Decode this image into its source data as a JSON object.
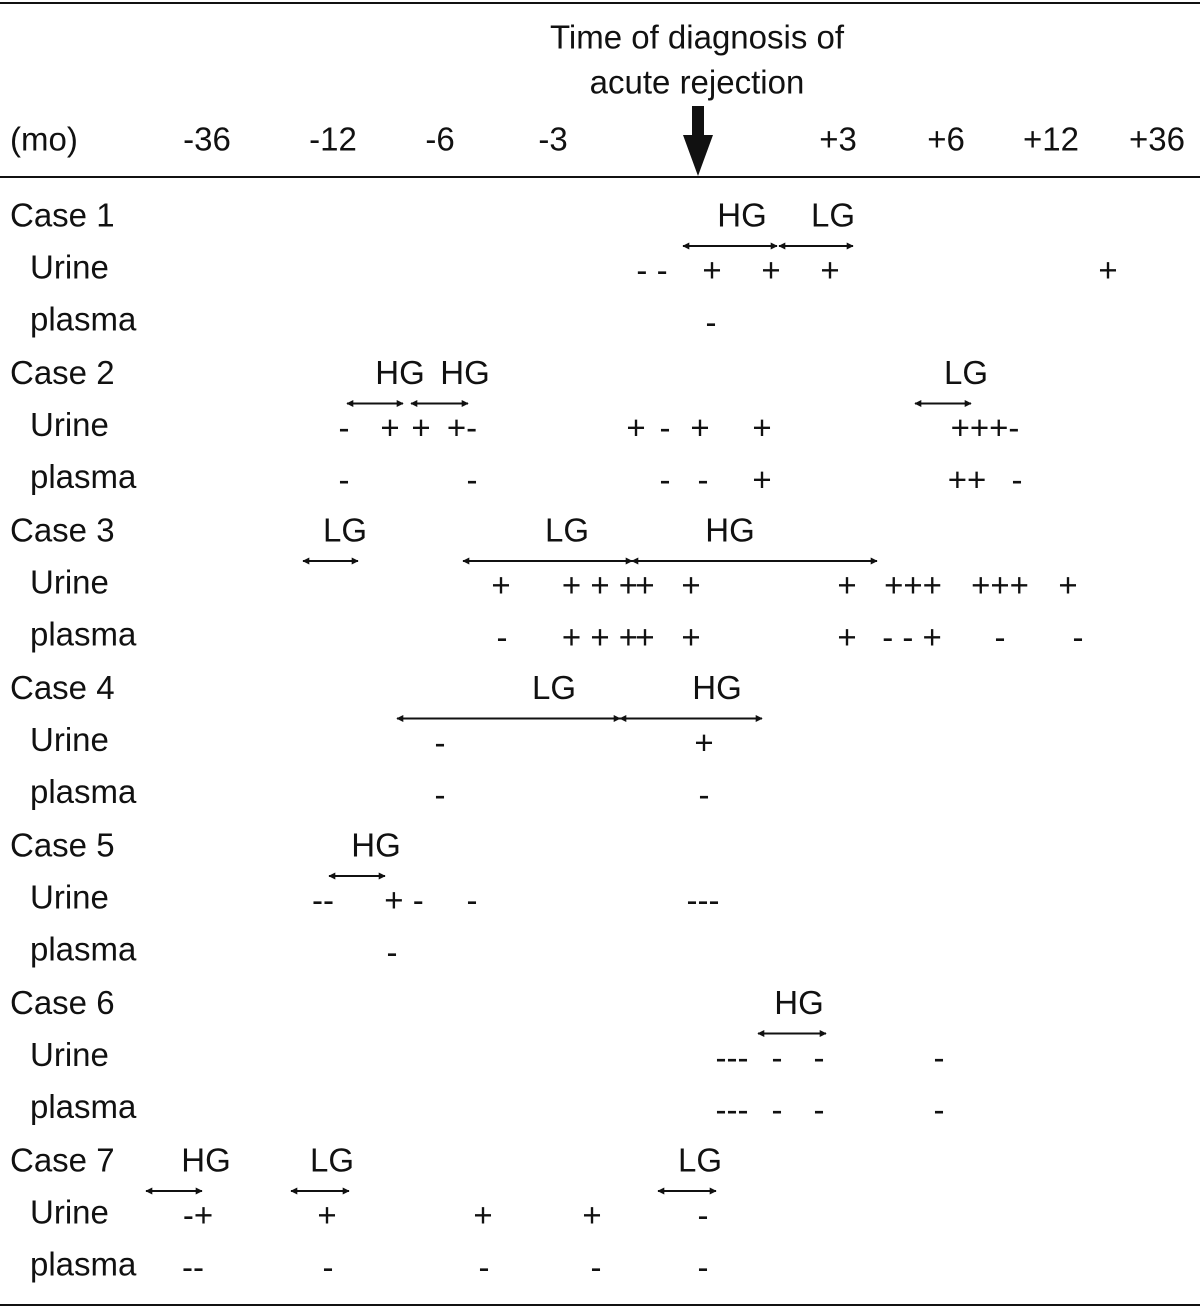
{
  "header": {
    "title_lines": [
      "Time of diagnosis of",
      "acute rejection"
    ],
    "unit": "(mo)",
    "time_points": [
      "-36",
      "-12",
      "-6",
      "-3",
      "+3",
      "+6",
      "+12",
      "+36"
    ]
  },
  "cases": [
    {
      "label": "Case 1",
      "annotations": [
        "HG",
        "LG"
      ],
      "rows": [
        {
          "label": "Urine",
          "marks": [
            "- -",
            "+",
            "+",
            "+",
            "+"
          ]
        },
        {
          "label": "plasma",
          "marks": [
            "-"
          ]
        }
      ]
    },
    {
      "label": "Case 2",
      "annotations": [
        "HG",
        "HG",
        "LG"
      ],
      "rows": [
        {
          "label": "Urine",
          "marks": [
            "-",
            "+",
            "+",
            "+-",
            "+",
            "-",
            "+",
            "+",
            "+++-"
          ]
        },
        {
          "label": "plasma",
          "marks": [
            "-",
            "-",
            "-",
            "-",
            "+",
            "++",
            "-"
          ]
        }
      ]
    },
    {
      "label": "Case 3",
      "annotations": [
        "LG",
        "LG",
        "HG"
      ],
      "rows": [
        {
          "label": "Urine",
          "marks": [
            "+",
            "+ + +",
            "+",
            "+",
            "+",
            "+++",
            "+++",
            "+"
          ]
        },
        {
          "label": "plasma",
          "marks": [
            "-",
            "+ + +",
            "+",
            "+",
            "+",
            "- - +",
            "-",
            "-"
          ]
        }
      ]
    },
    {
      "label": "Case 4",
      "annotations": [
        "LG",
        "HG"
      ],
      "rows": [
        {
          "label": "Urine",
          "marks": [
            "-",
            "+"
          ]
        },
        {
          "label": "plasma",
          "marks": [
            "-",
            "-"
          ]
        }
      ]
    },
    {
      "label": "Case 5",
      "annotations": [
        "HG"
      ],
      "rows": [
        {
          "label": "Urine",
          "marks": [
            "--",
            "+ -",
            "-",
            "---"
          ]
        },
        {
          "label": "plasma",
          "marks": [
            "-"
          ]
        }
      ]
    },
    {
      "label": "Case 6",
      "annotations": [
        "HG"
      ],
      "rows": [
        {
          "label": "Urine",
          "marks": [
            "---",
            "-",
            "-",
            "-"
          ]
        },
        {
          "label": "plasma",
          "marks": [
            "---",
            "-",
            "-",
            "-"
          ]
        }
      ]
    },
    {
      "label": "Case 7",
      "annotations": [
        "HG",
        "LG",
        "LG"
      ],
      "rows": [
        {
          "label": "Urine",
          "marks": [
            "-+",
            "+",
            "+",
            "+",
            "-"
          ]
        },
        {
          "label": "plasma",
          "marks": [
            "--",
            "-",
            "-",
            "-",
            "-"
          ]
        }
      ]
    }
  ]
}
